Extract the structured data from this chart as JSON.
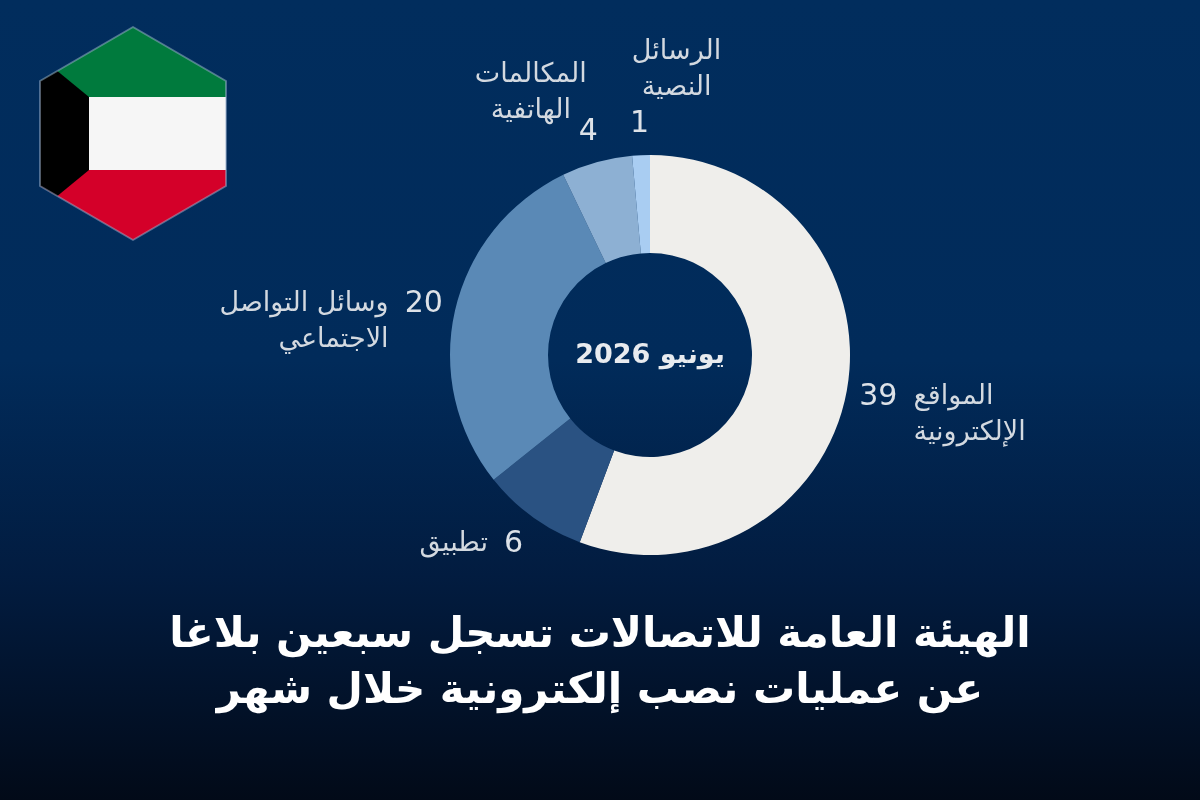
{
  "chart_data": {
    "type": "donut",
    "title": "الهيئة العامة للاتصالات تسجل سبعين بلاغا\nعن عمليات نصب إلكترونية خلال شهر",
    "categories": [
      "المواقع\nالإلكترونية",
      "تطبيق",
      "وسائل التواصل\nالاجتماعي",
      "المكالمات\nالهاتفية",
      "الرسائل\nالنصية"
    ],
    "values": [
      39,
      6,
      20,
      4,
      1
    ],
    "colors": [
      "#efeeeb",
      "#2a5282",
      "#5a89b6",
      "#8db0d3",
      "#a9cdf2"
    ],
    "data_labels": true,
    "annotations": [
      "يونيو 2026"
    ]
  }
}
